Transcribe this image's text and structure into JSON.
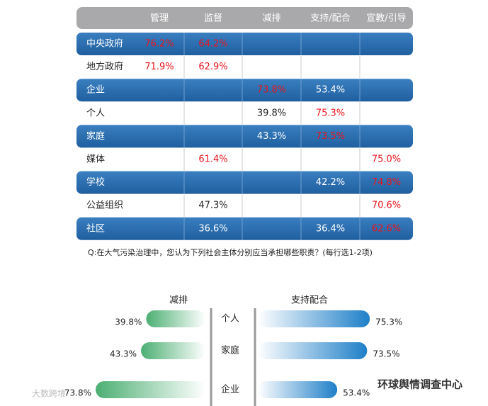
{
  "table": {
    "header": [
      "管理",
      "监督",
      "减排",
      "支持/配合",
      "宣教/引导"
    ],
    "rows": [
      {
        "label": "中央政府",
        "cells": [
          "76.2%",
          "64.2%",
          "",
          "",
          ""
        ],
        "highlight": [
          0,
          1
        ]
      },
      {
        "label": "地方政府",
        "cells": [
          "71.9%",
          "62.9%",
          "",
          "",
          ""
        ],
        "highlight": [
          0,
          1
        ]
      },
      {
        "label": "企业",
        "cells": [
          "",
          "",
          "73.8%",
          "53.4%",
          ""
        ],
        "highlight": [
          2
        ]
      },
      {
        "label": "个人",
        "cells": [
          "",
          "",
          "39.8%",
          "75.3%",
          ""
        ],
        "highlight": [
          3
        ]
      },
      {
        "label": "家庭",
        "cells": [
          "",
          "",
          "43.3%",
          "73.5%",
          ""
        ],
        "highlight": [
          3
        ]
      },
      {
        "label": "媒体",
        "cells": [
          "",
          "61.4%",
          "",
          "",
          "75.0%"
        ],
        "highlight": [
          1,
          4
        ]
      },
      {
        "label": "学校",
        "cells": [
          "",
          "",
          "",
          "42.2%",
          "74.8%"
        ],
        "highlight": [
          4
        ]
      },
      {
        "label": "公益组织",
        "cells": [
          "",
          "47.3%",
          "",
          "",
          "70.6%"
        ],
        "highlight": [
          4
        ]
      },
      {
        "label": "社区",
        "cells": [
          "",
          "36.6%",
          "",
          "36.4%",
          "62.6%"
        ],
        "highlight": [
          4
        ]
      }
    ],
    "caption": "Q:在大气污染治理中，您认为下列社会主体分别应当承担哪些职责？(每行选1-2项)"
  },
  "chart_data": {
    "type": "butterfly",
    "categories": [
      "个人",
      "家庭",
      "企业"
    ],
    "series": [
      {
        "name": "减排",
        "color": "#4caf73",
        "values": [
          39.8,
          43.3,
          73.8
        ],
        "value_labels": [
          "39.8%",
          "43.3%",
          "73.8%"
        ]
      },
      {
        "name": "支持配合",
        "color": "#1e7fc8",
        "values": [
          75.3,
          73.5,
          53.4
        ],
        "value_labels": [
          "75.3%",
          "73.5%",
          "53.4%"
        ]
      }
    ]
  },
  "watermarks": [
    "大数跨境",
    "环球舆情调查中心"
  ]
}
